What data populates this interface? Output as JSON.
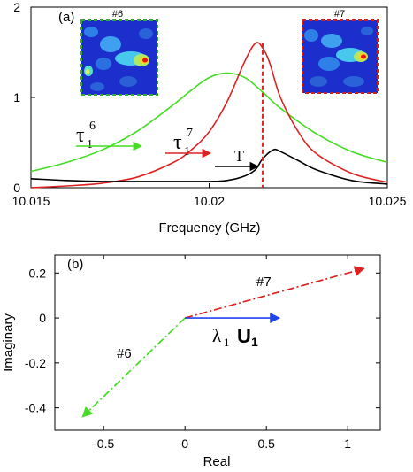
{
  "chart_data": [
    {
      "type": "line",
      "panel_label": "(a)",
      "xlabel": "Frequency (GHz)",
      "ylabel": "",
      "xlim": [
        10.015,
        10.025
      ],
      "ylim": [
        0,
        2
      ],
      "x_ticks": [
        "10.015",
        "10.02",
        "10.025"
      ],
      "y_ticks": [
        "0",
        "1",
        "2"
      ],
      "series": [
        {
          "name": "τ₁⁶",
          "color": "#44dd22",
          "x": [
            10.015,
            10.016,
            10.017,
            10.018,
            10.019,
            10.0195,
            10.02,
            10.0205,
            10.021,
            10.0215,
            10.022,
            10.023,
            10.024,
            10.025
          ],
          "y": [
            0.18,
            0.28,
            0.42,
            0.63,
            0.92,
            1.08,
            1.22,
            1.27,
            1.22,
            1.06,
            0.88,
            0.6,
            0.4,
            0.28
          ]
        },
        {
          "name": "τ₁⁷",
          "color": "#dd2222",
          "x": [
            10.015,
            10.016,
            10.017,
            10.018,
            10.019,
            10.0195,
            10.02,
            10.0205,
            10.021,
            10.0213,
            10.0215,
            10.0217,
            10.022,
            10.0225,
            10.023,
            10.024,
            10.025
          ],
          "y": [
            0.0,
            0.02,
            0.05,
            0.12,
            0.28,
            0.42,
            0.62,
            0.95,
            1.4,
            1.6,
            1.55,
            1.38,
            1.0,
            0.62,
            0.38,
            0.16,
            0.06
          ]
        },
        {
          "name": "T",
          "color": "#000000",
          "x": [
            10.015,
            10.016,
            10.017,
            10.018,
            10.019,
            10.02,
            10.0205,
            10.021,
            10.0213,
            10.0215,
            10.0218,
            10.022,
            10.0225,
            10.023,
            10.024,
            10.025
          ],
          "y": [
            0.1,
            0.08,
            0.07,
            0.07,
            0.07,
            0.07,
            0.08,
            0.13,
            0.2,
            0.32,
            0.42,
            0.4,
            0.3,
            0.2,
            0.08,
            0.04
          ]
        }
      ],
      "vline": {
        "x": 10.0215,
        "y_top": 1.6,
        "style": "dashed",
        "color": "#dd2222"
      },
      "annotations": [
        {
          "base": "τ",
          "sub": "1",
          "sup": "6",
          "color": "#44dd22"
        },
        {
          "base": "τ",
          "sub": "1",
          "sup": "7",
          "color": "#dd2222"
        },
        {
          "base": "T",
          "color": "#000000"
        }
      ],
      "insets": [
        {
          "label": "#6",
          "border": "#33aa33"
        },
        {
          "label": "#7",
          "border": "#cc2222"
        }
      ]
    },
    {
      "type": "scatter",
      "panel_label": "(b)",
      "xlabel": "Real",
      "ylabel": "Imaginary",
      "xlim": [
        -0.8,
        1.2
      ],
      "ylim": [
        -0.5,
        0.28
      ],
      "x_ticks": [
        "-0.5",
        "0",
        "0.5",
        "1"
      ],
      "y_ticks": [
        "0.2",
        "0",
        "-0.2",
        "-0.4"
      ],
      "vectors": [
        {
          "name": "#6",
          "color": "#44dd22",
          "style": "dashed",
          "from": [
            0,
            0
          ],
          "to": [
            -0.63,
            -0.44
          ]
        },
        {
          "name": "#7",
          "color": "#dd2222",
          "style": "dashed",
          "from": [
            0,
            0
          ],
          "to": [
            1.1,
            0.22
          ]
        },
        {
          "name": "λ₁ U₁",
          "color": "#2244ee",
          "style": "solid",
          "from": [
            0,
            0
          ],
          "to": [
            0.58,
            0
          ]
        }
      ],
      "labels": {
        "v6": "#6",
        "v7": "#7",
        "lambda": "λ",
        "lambda_sub": "1",
        "u": "U",
        "u_sub": "1"
      }
    }
  ]
}
